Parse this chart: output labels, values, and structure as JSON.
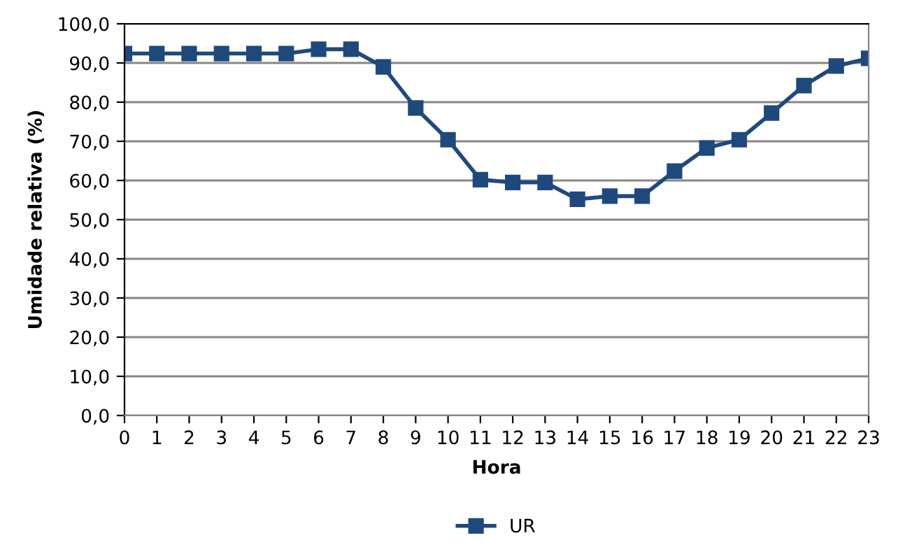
{
  "chart_data": {
    "type": "line",
    "xlabel": "Hora",
    "ylabel": "Umidade relativa (%)",
    "categories": [
      "0",
      "1",
      "2",
      "3",
      "4",
      "5",
      "6",
      "7",
      "8",
      "9",
      "10",
      "11",
      "12",
      "13",
      "14",
      "15",
      "16",
      "17",
      "18",
      "19",
      "20",
      "21",
      "22",
      "23"
    ],
    "series": [
      {
        "name": "UR",
        "color": "#1f497d",
        "values": [
          92.4,
          92.4,
          92.4,
          92.4,
          92.4,
          92.4,
          93.5,
          93.5,
          89.0,
          78.5,
          70.4,
          60.2,
          59.5,
          59.5,
          55.2,
          56.0,
          56.0,
          62.4,
          68.3,
          70.4,
          77.2,
          84.2,
          89.2,
          91.2
        ]
      }
    ],
    "ylim": [
      0,
      100
    ],
    "yticks": [
      {
        "value": 0,
        "label": "0,0"
      },
      {
        "value": 10,
        "label": "10,0"
      },
      {
        "value": 20,
        "label": "20,0"
      },
      {
        "value": 30,
        "label": "30,0"
      },
      {
        "value": 40,
        "label": "40,0"
      },
      {
        "value": 50,
        "label": "50,0"
      },
      {
        "value": 60,
        "label": "60,0"
      },
      {
        "value": 70,
        "label": "70,0"
      },
      {
        "value": 80,
        "label": "80,0"
      },
      {
        "value": 90,
        "label": "90,0"
      },
      {
        "value": 100,
        "label": "100,0"
      }
    ],
    "grid": "y",
    "legend": "bottom",
    "marker": "square",
    "line_style": "solid"
  }
}
